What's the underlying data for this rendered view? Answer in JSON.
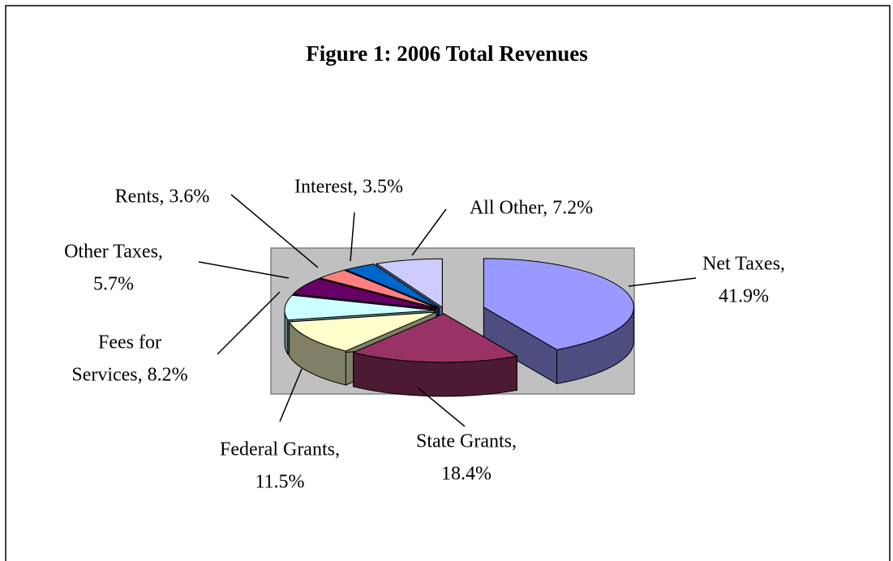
{
  "chart_data": {
    "type": "pie",
    "title": "Figure 1:  2006 Total Revenues",
    "values": [
      41.9,
      18.4,
      11.5,
      8.2,
      5.7,
      3.6,
      3.5,
      7.2
    ],
    "value_labels": [
      [
        "Net Taxes,",
        "41.9%"
      ],
      [
        "State Grants,",
        "18.4%"
      ],
      [
        "Federal Grants,",
        "11.5%"
      ],
      [
        "Fees for",
        "Services, 8.2%"
      ],
      [
        "Other Taxes,",
        "5.7%"
      ],
      [
        "Rents, 3.6%"
      ],
      [
        "Interest, 3.5%"
      ],
      [
        "All Other, 7.2%"
      ]
    ],
    "colors": [
      "#9999ff",
      "#993366",
      "#ffffcc",
      "#ccffff",
      "#660066",
      "#ff8080",
      "#0066cc",
      "#ccccff"
    ]
  }
}
